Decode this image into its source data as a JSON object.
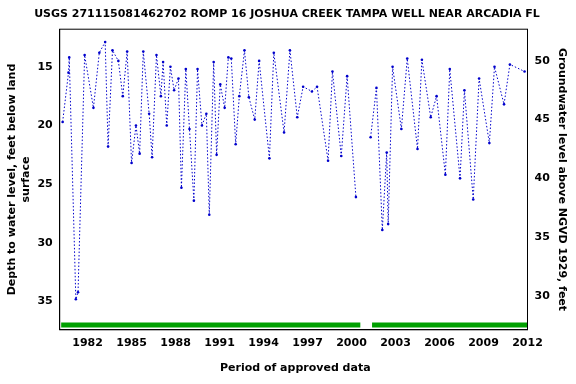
{
  "chart_data": {
    "type": "line",
    "title": "USGS 271115081462702 ROMP 16 JOSHUA CREEK TAMPA WELL NEAR ARCADIA FL",
    "y_label": [
      "Depth to water level, feet below land",
      "surface"
    ],
    "y2_label": "Groundwater level above NGVD 1929, feet",
    "xlim": [
      1980.1,
      2012
    ],
    "xticks": [
      1982,
      1985,
      1988,
      1991,
      1994,
      1997,
      2000,
      2003,
      2006,
      2009,
      2012
    ],
    "ylim": [
      37.4,
      11.8
    ],
    "yticks": [
      15,
      20,
      25,
      30,
      35
    ],
    "y2lim": [
      27.1,
      52.7
    ],
    "y2ticks": [
      30,
      35,
      40,
      45,
      50
    ],
    "grid": false,
    "legend": "bottom",
    "series": [
      {
        "color": "#0000cc",
        "line_style": "dotted",
        "marker": "circle",
        "x": [
          1980.3,
          1980.7,
          1980.75,
          1981.2,
          1981.35,
          1981.8,
          1982.4,
          1982.8,
          1983.2,
          1983.4,
          1983.7,
          1984.1,
          1984.4,
          1984.7,
          1985.0,
          1985.3,
          1985.55,
          1985.8,
          1986.2,
          1986.4,
          1986.7,
          1987.0,
          1987.15,
          1987.4,
          1987.65,
          1987.9,
          1988.2,
          1988.4,
          1988.7,
          1988.95,
          1989.25,
          1989.5,
          1989.8,
          1990.1,
          1990.3,
          1990.6,
          1990.8,
          1991.05,
          1991.35,
          1991.6,
          1991.8,
          1992.1,
          1992.35,
          1992.7,
          1993.0,
          1993.4,
          1993.7,
          1994.4,
          1994.7,
          1995.4,
          1995.8,
          1996.3,
          1996.7,
          1997.3,
          1997.65,
          1998.4,
          1998.7,
          1999.3,
          1999.7,
          2000.3,
          2000.8,
          2001.3,
          2001.7,
          2002.1,
          2002.4,
          2002.5,
          2002.8,
          2003.4,
          2003.8,
          2004.5,
          2004.8,
          2005.4,
          2005.8,
          2006.4,
          2006.7,
          2007.4,
          2007.7,
          2008.3,
          2008.7,
          2009.4,
          2009.75,
          2010.4,
          2010.8,
          2011.8
        ],
        "values": [
          19.7,
          15.5,
          14.2,
          34.8,
          34.2,
          14.0,
          18.5,
          13.8,
          12.9,
          21.8,
          13.6,
          14.5,
          17.5,
          13.7,
          23.2,
          20.0,
          22.4,
          13.7,
          19.0,
          22.7,
          14.0,
          17.5,
          14.6,
          20.0,
          15.0,
          17.0,
          16.0,
          25.3,
          15.2,
          20.3,
          26.4,
          15.2,
          20.0,
          19.0,
          27.6,
          14.6,
          22.5,
          16.5,
          18.5,
          14.2,
          14.3,
          21.6,
          17.5,
          13.6,
          17.6,
          19.5,
          14.5,
          22.8,
          13.8,
          20.6,
          13.6,
          19.3,
          16.7,
          17.1,
          16.7,
          23.0,
          15.4,
          22.6,
          15.8,
          26.1,
          null,
          21.0,
          16.8,
          28.9,
          22.3,
          28.4,
          15.0,
          20.3,
          14.3,
          22.0,
          14.4,
          19.3,
          17.5,
          24.2,
          15.2,
          24.5,
          17.0,
          26.3,
          16.0,
          21.5,
          15.0,
          18.2,
          14.8,
          15.4
        ]
      },
      {
        "name": "Period of approved data",
        "color": "#00a000",
        "line_style": "solid",
        "marker": "none",
        "x": [
          1980.2,
          2000.6,
          2001.0,
          2001.4,
          2012
        ],
        "values": [
          37,
          37,
          null,
          37,
          37
        ]
      }
    ]
  }
}
